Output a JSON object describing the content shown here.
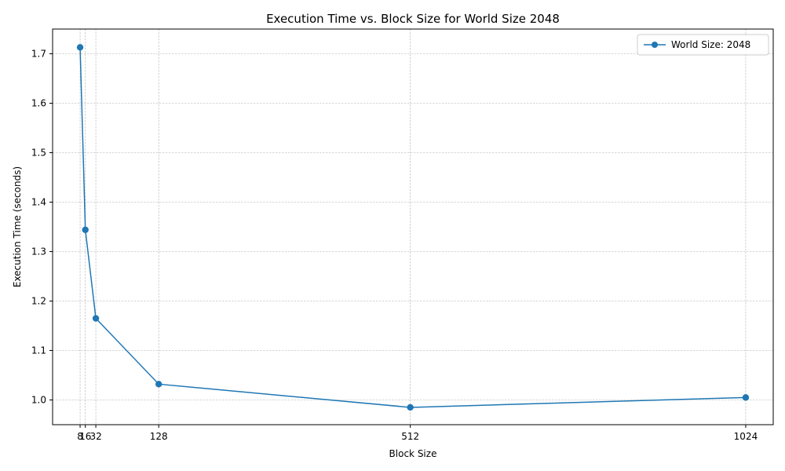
{
  "chart_data": {
    "type": "line",
    "title": "Execution Time vs. Block Size for World Size 2048",
    "xlabel": "Block Size",
    "ylabel": "Execution Time (seconds)",
    "x": [
      8,
      16,
      32,
      128,
      512,
      1024
    ],
    "x_tick_labels": [
      "8",
      "16",
      "32",
      "128",
      "512",
      "1024"
    ],
    "xlim": [
      -34,
      1066
    ],
    "ylim": [
      0.95,
      1.75
    ],
    "y_ticks": [
      1.0,
      1.1,
      1.2,
      1.3,
      1.4,
      1.5,
      1.6,
      1.7
    ],
    "y_tick_labels": [
      "1.0",
      "1.1",
      "1.2",
      "1.3",
      "1.4",
      "1.5",
      "1.6",
      "1.7"
    ],
    "grid": true,
    "legend_position": "top-right",
    "series": [
      {
        "name": "World Size: 2048",
        "color": "#1f77b4",
        "marker": "circle",
        "values": [
          1.713,
          1.344,
          1.165,
          1.032,
          0.985,
          1.005
        ]
      }
    ]
  }
}
